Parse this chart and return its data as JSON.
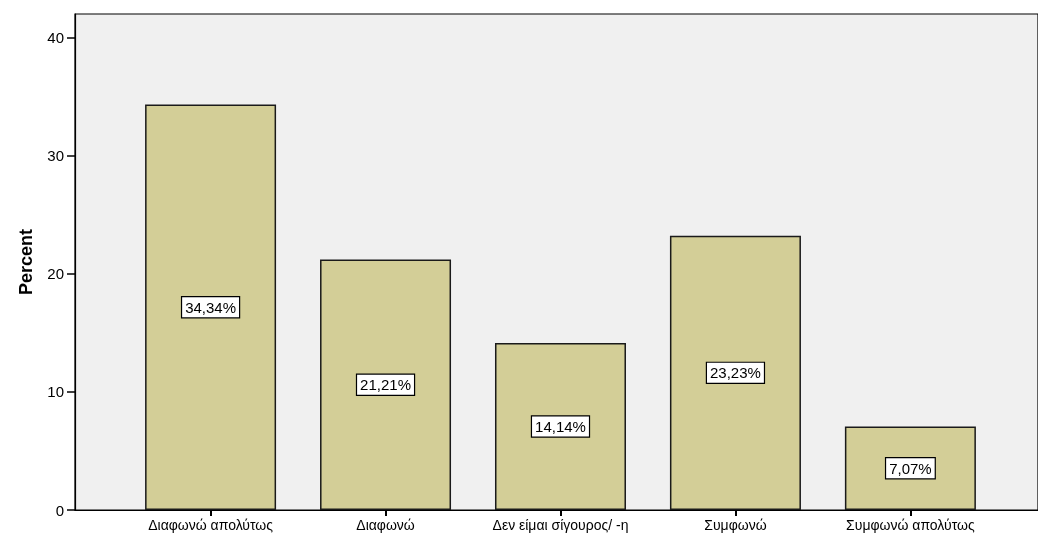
{
  "chart_data": {
    "type": "bar",
    "ylabel": "Percent",
    "categories": [
      "Διαφωνώ απολύτως",
      "Διαφωνώ",
      "Δεν είμαι σίγουρος/ -η",
      "Συμφωνώ",
      "Συμφωνώ απολύτως"
    ],
    "values": [
      34.34,
      21.21,
      14.14,
      23.23,
      7.07
    ],
    "value_labels": [
      "34,34%",
      "21,21%",
      "14,14%",
      "23,23%",
      "7,07%"
    ],
    "color": "#d3ce97",
    "ylim": [
      0,
      42
    ],
    "yticks": [
      0,
      10,
      20,
      30,
      40
    ]
  }
}
